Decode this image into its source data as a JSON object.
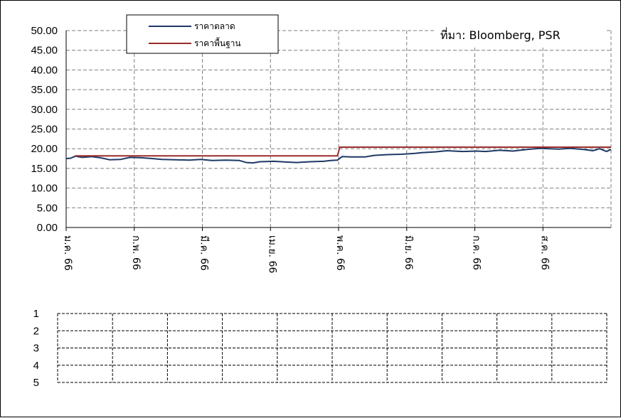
{
  "chart_data": [
    {
      "type": "line",
      "source_note": "ที่มา:  Bloomberg, PSR",
      "ylim": [
        0,
        50
      ],
      "y_tick_labels": [
        "0.00",
        "5.00",
        "10.00",
        "15.00",
        "20.00",
        "25.00",
        "30.00",
        "35.00",
        "40.00",
        "45.00",
        "50.00"
      ],
      "x_tick_labels": [
        "ม.ค. 66",
        "ก.พ. 66",
        "มี.ค. 66",
        "เม.ย. 66",
        "พ.ค. 66",
        "มิ.ย. 66",
        "ก.ค. 66",
        "ส.ค. 66"
      ],
      "x_start": "2023-01-01",
      "x_end": "2023-08-28",
      "grid": true,
      "legend_position": "top-left",
      "series": [
        {
          "name": "ราคาตลาด",
          "color": "#1f3864",
          "points": [
            [
              "2023-01-01",
              17.5
            ],
            [
              "2023-01-03",
              17.6
            ],
            [
              "2023-01-05",
              18.1
            ],
            [
              "2023-01-08",
              17.8
            ],
            [
              "2023-01-12",
              18.0
            ],
            [
              "2023-01-16",
              17.7
            ],
            [
              "2023-01-20",
              17.2
            ],
            [
              "2023-01-25",
              17.3
            ],
            [
              "2023-01-29",
              17.8
            ],
            [
              "2023-02-03",
              17.7
            ],
            [
              "2023-02-08",
              17.5
            ],
            [
              "2023-02-12",
              17.3
            ],
            [
              "2023-02-18",
              17.2
            ],
            [
              "2023-02-24",
              17.1
            ],
            [
              "2023-03-01",
              17.3
            ],
            [
              "2023-03-06",
              17.0
            ],
            [
              "2023-03-12",
              17.1
            ],
            [
              "2023-03-18",
              17.0
            ],
            [
              "2023-03-21",
              16.5
            ],
            [
              "2023-03-24",
              16.4
            ],
            [
              "2023-03-27",
              16.7
            ],
            [
              "2023-04-02",
              16.8
            ],
            [
              "2023-04-08",
              16.6
            ],
            [
              "2023-04-12",
              16.5
            ],
            [
              "2023-04-18",
              16.7
            ],
            [
              "2023-04-24",
              16.8
            ],
            [
              "2023-04-27",
              17.0
            ],
            [
              "2023-04-30",
              17.1
            ],
            [
              "2023-05-02",
              18.0
            ],
            [
              "2023-05-06",
              17.9
            ],
            [
              "2023-05-12",
              17.9
            ],
            [
              "2023-05-16",
              18.3
            ],
            [
              "2023-05-22",
              18.5
            ],
            [
              "2023-05-28",
              18.6
            ],
            [
              "2023-06-03",
              18.8
            ],
            [
              "2023-06-06",
              19.0
            ],
            [
              "2023-06-12",
              19.2
            ],
            [
              "2023-06-17",
              19.5
            ],
            [
              "2023-06-24",
              19.3
            ],
            [
              "2023-06-30",
              19.4
            ],
            [
              "2023-07-04",
              19.3
            ],
            [
              "2023-07-10",
              19.6
            ],
            [
              "2023-07-16",
              19.4
            ],
            [
              "2023-07-22",
              19.8
            ],
            [
              "2023-07-28",
              20.1
            ],
            [
              "2023-08-01",
              20.0
            ],
            [
              "2023-08-05",
              19.9
            ],
            [
              "2023-08-10",
              20.1
            ],
            [
              "2023-08-16",
              19.8
            ],
            [
              "2023-08-20",
              19.5
            ],
            [
              "2023-08-23",
              20.0
            ],
            [
              "2023-08-26",
              19.3
            ],
            [
              "2023-08-28",
              19.8
            ]
          ]
        },
        {
          "name": "ราคาพื้นฐาน",
          "color": "#9b2b2b",
          "points": [
            [
              "2023-01-05",
              18.2
            ],
            [
              "2023-04-30",
              18.2
            ],
            [
              "2023-05-01",
              20.4
            ],
            [
              "2023-08-28",
              20.4
            ]
          ]
        }
      ]
    },
    {
      "type": "table",
      "row_labels": [
        "1",
        "2",
        "3",
        "4",
        "5"
      ],
      "columns": 10,
      "grid": true
    }
  ]
}
